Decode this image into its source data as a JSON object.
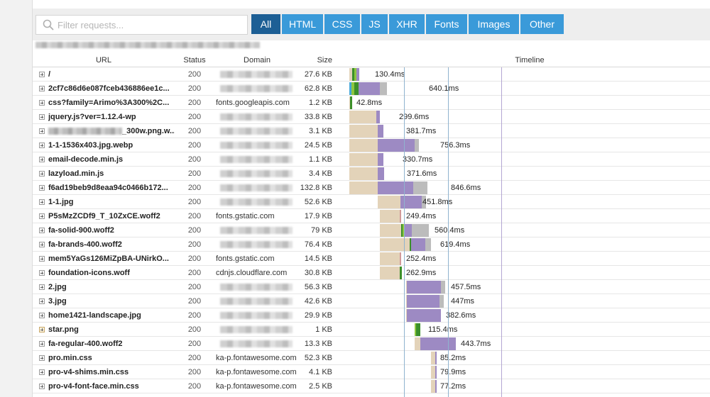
{
  "search": {
    "placeholder": "Filter requests..."
  },
  "filters": [
    {
      "label": "All",
      "active": true
    },
    {
      "label": "HTML",
      "active": false
    },
    {
      "label": "CSS",
      "active": false
    },
    {
      "label": "JS",
      "active": false
    },
    {
      "label": "XHR",
      "active": false
    },
    {
      "label": "Fonts",
      "active": false
    },
    {
      "label": "Images",
      "active": false
    },
    {
      "label": "Other",
      "active": false
    }
  ],
  "columns": {
    "url": "URL",
    "status": "Status",
    "domain": "Domain",
    "size": "Size",
    "timeline": "Timeline"
  },
  "colors": {
    "wait": "#e3d3b9",
    "receive": "#9d8ac3",
    "content": "#bcbcbc",
    "ssl": "#8dc63f",
    "dns": "#44a6d9",
    "dark_green": "#3b8f2a",
    "blocked": "#d09a9a",
    "line_blue": "#8fb3cf",
    "line_purple": "#b3a6d3"
  },
  "requests": [
    {
      "url": "/",
      "status": "200",
      "domain": "",
      "size": "27.6 KB",
      "duration": "130.4ms",
      "icon": "expand-icon"
    },
    {
      "url": "2cf7c86d6e087fceb436886ee1c...",
      "status": "200",
      "domain": "",
      "size": "62.8 KB",
      "duration": "640.1ms",
      "icon": "expand-icon"
    },
    {
      "url": "css?family=Arimo%3A300%2C...",
      "status": "200",
      "domain": "fonts.googleapis.com",
      "size": "1.2 KB",
      "duration": "42.8ms",
      "icon": "expand-icon"
    },
    {
      "url": "jquery.js?ver=1.12.4-wp",
      "status": "200",
      "domain": "",
      "size": "33.8 KB",
      "duration": "299.6ms",
      "icon": "expand-icon"
    },
    {
      "url": "_300w.png.w...",
      "status": "200",
      "domain": "",
      "size": "3.1 KB",
      "duration": "381.7ms",
      "icon": "expand-icon"
    },
    {
      "url": "1-1-1536x403.jpg.webp",
      "status": "200",
      "domain": "",
      "size": "24.5 KB",
      "duration": "756.3ms",
      "icon": "expand-icon"
    },
    {
      "url": "email-decode.min.js",
      "status": "200",
      "domain": "",
      "size": "1.1 KB",
      "duration": "330.7ms",
      "icon": "expand-icon"
    },
    {
      "url": "lazyload.min.js",
      "status": "200",
      "domain": "",
      "size": "3.4 KB",
      "duration": "371.6ms",
      "icon": "expand-icon"
    },
    {
      "url": "f6ad19beb9d8eaa94c0466b172...",
      "status": "200",
      "domain": "",
      "size": "132.8 KB",
      "duration": "846.6ms",
      "icon": "expand-icon"
    },
    {
      "url": "1-1.jpg",
      "status": "200",
      "domain": "",
      "size": "52.6 KB",
      "duration": "451.8ms",
      "icon": "expand-icon"
    },
    {
      "url": "P5sMzZCDf9_T_10ZxCE.woff2",
      "status": "200",
      "domain": "fonts.gstatic.com",
      "size": "17.9 KB",
      "duration": "249.4ms",
      "icon": "expand-icon"
    },
    {
      "url": "fa-solid-900.woff2",
      "status": "200",
      "domain": "",
      "size": "79 KB",
      "duration": "560.4ms",
      "icon": "expand-icon"
    },
    {
      "url": "fa-brands-400.woff2",
      "status": "200",
      "domain": "",
      "size": "76.4 KB",
      "duration": "619.4ms",
      "icon": "expand-icon"
    },
    {
      "url": "mem5YaGs126MiZpBA-UNirkO...",
      "status": "200",
      "domain": "fonts.gstatic.com",
      "size": "14.5 KB",
      "duration": "252.4ms",
      "icon": "expand-icon"
    },
    {
      "url": "foundation-icons.woff",
      "status": "200",
      "domain": "cdnjs.cloudflare.com",
      "size": "30.8 KB",
      "duration": "262.9ms",
      "icon": "expand-icon"
    },
    {
      "url": "2.jpg",
      "status": "200",
      "domain": "",
      "size": "56.3 KB",
      "duration": "457.5ms",
      "icon": "expand-icon"
    },
    {
      "url": "3.jpg",
      "status": "200",
      "domain": "",
      "size": "42.6 KB",
      "duration": "447ms",
      "icon": "expand-icon"
    },
    {
      "url": "home1421-landscape.jpg",
      "status": "200",
      "domain": "",
      "size": "29.9 KB",
      "duration": "382.6ms",
      "icon": "expand-icon"
    },
    {
      "url": "star.png",
      "status": "200",
      "domain": "",
      "size": "1 KB",
      "duration": "115.4ms",
      "icon": "warning-expand-icon"
    },
    {
      "url": "fa-regular-400.woff2",
      "status": "200",
      "domain": "",
      "size": "13.3 KB",
      "duration": "443.7ms",
      "icon": "expand-icon"
    },
    {
      "url": "pro.min.css",
      "status": "200",
      "domain": "ka-p.fontawesome.com",
      "size": "52.3 KB",
      "duration": "85.2ms",
      "icon": "expand-icon"
    },
    {
      "url": "pro-v4-shims.min.css",
      "status": "200",
      "domain": "ka-p.fontawesome.com",
      "size": "4.1 KB",
      "duration": "79.9ms",
      "icon": "expand-icon"
    },
    {
      "url": "pro-v4-font-face.min.css",
      "status": "200",
      "domain": "ka-p.fontawesome.com",
      "size": "2.5 KB",
      "duration": "77.2ms",
      "icon": "expand-icon"
    }
  ]
}
